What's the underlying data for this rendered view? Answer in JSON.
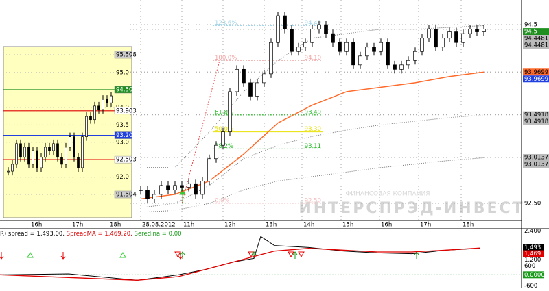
{
  "main": {
    "ylim": [
      92.308,
      94.777
    ],
    "closes": [
      92.65,
      92.55,
      92.6,
      92.7,
      92.65,
      92.7,
      92.68,
      92.72,
      92.6,
      92.75,
      93.0,
      93.15,
      93.3,
      93.75,
      94.0,
      93.85,
      93.7,
      93.85,
      93.95,
      94.3,
      94.6,
      94.45,
      94.2,
      94.25,
      94.3,
      94.45,
      94.5,
      94.4,
      94.3,
      94.2,
      94.3,
      94.05,
      94.15,
      94.25,
      94.2,
      94.3,
      94.05,
      94.0,
      94.05,
      94.1,
      94.2,
      94.35,
      94.45,
      94.25,
      94.35,
      94.42,
      94.3,
      94.4,
      94.45,
      94.42,
      94.45
    ],
    "ma": {
      "color": "#ff6a2a",
      "x": [
        0,
        5,
        10,
        15,
        20,
        25,
        30,
        35,
        40,
        45,
        50
      ],
      "values": [
        92.55,
        92.6,
        92.75,
        93.05,
        93.4,
        93.6,
        93.75,
        93.8,
        93.85,
        93.92,
        93.97
      ]
    },
    "band_upper": {
      "color": "#777",
      "x": [
        0,
        5,
        10,
        15,
        20,
        25,
        30,
        35,
        40,
        45,
        50
      ],
      "values": [
        92.9,
        92.9,
        93.3,
        93.75,
        94.1,
        94.35,
        94.4,
        94.45,
        94.45,
        94.47,
        94.49
      ]
    },
    "band_mid": {
      "color": "#777",
      "x": [
        0,
        5,
        10,
        15,
        20,
        25,
        30,
        35,
        40,
        45,
        50
      ],
      "values": [
        92.45,
        92.5,
        92.7,
        93.0,
        93.15,
        93.25,
        93.32,
        93.38,
        93.42,
        93.46,
        93.49
      ]
    },
    "band_lower": {
      "color": "#777",
      "x": [
        0,
        5,
        10,
        15,
        20,
        25,
        30,
        35,
        40,
        45,
        50
      ],
      "values": [
        92.4,
        92.42,
        92.5,
        92.65,
        92.75,
        92.8,
        92.85,
        92.9,
        92.94,
        92.98,
        93.01
      ]
    },
    "fib": [
      {
        "label": "123.6%",
        "price": "94.49",
        "value": 94.49,
        "color": "#9ad0e8"
      },
      {
        "label": "100.0%",
        "price": "94.10",
        "value": 94.1,
        "color": "#f0a0a0"
      },
      {
        "label": "61.8%",
        "price": "93.49",
        "value": 93.49,
        "color": "#22bb22"
      },
      {
        "label": "50.0%",
        "price": "93.30",
        "value": 93.3,
        "color": "#e8e000"
      },
      {
        "label": "38.2%",
        "price": "93.11",
        "value": 93.11,
        "color": "#22bb22"
      },
      {
        "label": "0.0%",
        "price": "92.50",
        "value": 92.5,
        "color": "#f4c0c0"
      }
    ],
    "tags": [
      {
        "value": 94.5,
        "bg": "#fff",
        "fg": "#000"
      },
      {
        "value": 94.5,
        "bg": "#1f8f1f",
        "fg": "#fff"
      },
      {
        "value": 94.4481,
        "bg": "#bbb",
        "fg": "#000"
      },
      {
        "value": 94.4481,
        "bg": "#bbb",
        "fg": "#000"
      },
      {
        "value": 93.9699,
        "bg": "#ff6a2a",
        "fg": "#000"
      },
      {
        "value": 93.9699,
        "bg": "#2040e0",
        "fg": "#fff"
      },
      {
        "value": 93.4918,
        "bg": "#bbb",
        "fg": "#000"
      },
      {
        "value": 93.4918,
        "bg": "#bbb",
        "fg": "#000"
      },
      {
        "value": 93.0137,
        "bg": "#bbb",
        "fg": "#000"
      },
      {
        "value": 93.0137,
        "bg": "#bbb",
        "fg": "#000"
      },
      {
        "value": 92.5,
        "label": "92.50",
        "bg": "#fff",
        "fg": "#000"
      }
    ],
    "time_labels": [
      "28.08.2012",
      "11h",
      "12h",
      "13h",
      "14h",
      "15h",
      "16h",
      "17h",
      "18h"
    ]
  },
  "inset": {
    "ylim": [
      90.837,
      95.744
    ],
    "closes": [
      92.17,
      92.37,
      92.96,
      92.57,
      92.86,
      92.37,
      92.76,
      92.27,
      92.57,
      92.86,
      92.76,
      92.96,
      92.57,
      92.37,
      92.86,
      93.16,
      92.57,
      92.27,
      93.16,
      93.74,
      93.65,
      94.04,
      93.94,
      94.23,
      94.13,
      94.33
    ],
    "ticks": [
      {
        "value": 95.508,
        "label": "95.508",
        "bg": "#ccc",
        "fg": "#000"
      },
      {
        "value": 95,
        "label": "95.0"
      },
      {
        "value": 94.507,
        "label": "94.507",
        "bg": "#1f8f1f",
        "fg": "#fff",
        "line": "#1f8f1f"
      },
      {
        "value": 94,
        "label": "94.0"
      },
      {
        "value": 93.903,
        "label": "93.903",
        "bg": "#fff",
        "fg": "#000",
        "line": "#e00000"
      },
      {
        "value": 93.5,
        "label": "93.5"
      },
      {
        "value": 93.201,
        "label": "93.201",
        "bg": "#2040e0",
        "fg": "#fff",
        "line": "#2040e0"
      },
      {
        "value": 93,
        "label": "93.0"
      },
      {
        "value": 92.503,
        "label": "92.503",
        "bg": "#fff",
        "fg": "#000",
        "line": "#e00000"
      },
      {
        "value": 92,
        "label": "92.0"
      },
      {
        "value": 91.504,
        "label": "91.504",
        "bg": "#ccc",
        "fg": "#000"
      }
    ],
    "time_labels": [
      "16h",
      "17h",
      "18h"
    ]
  },
  "indicator": {
    "legend": [
      {
        "text": "R) spread = 1,493.00, ",
        "color": "#000"
      },
      {
        "text": "SpreadMA = 1,469.20, ",
        "color": "#e00000"
      },
      {
        "text": "Seredina = 0.00",
        "color": "#1a9a1a"
      }
    ],
    "ylim": [
      -700,
      2450
    ],
    "spread": {
      "color": "#000",
      "x": [
        0,
        100,
        200,
        260,
        300,
        340,
        370,
        380,
        400,
        450,
        500,
        550,
        600,
        650,
        700
      ],
      "values": [
        0,
        50,
        -300,
        0,
        300,
        700,
        900,
        2100,
        1600,
        1500,
        1300,
        1200,
        1150,
        1350,
        1450
      ]
    },
    "spread_ma": {
      "color": "#e00000",
      "x": [
        0,
        200,
        260,
        300,
        350,
        400,
        450,
        500,
        550,
        600,
        650,
        700
      ],
      "values": [
        0,
        -300,
        -100,
        300,
        800,
        1300,
        1450,
        1350,
        1250,
        1250,
        1350,
        1470
      ]
    },
    "ticks": [
      {
        "value": 2400,
        "label": "2,400"
      },
      {
        "value": 1493,
        "label": "1,493",
        "bg": "#000",
        "fg": "#fff"
      },
      {
        "value": 1469,
        "label": "1,469",
        "bg": "#e00000",
        "fg": "#fff"
      },
      {
        "value": 1200,
        "label": "1,200"
      },
      600,
      {
        "value": 0,
        "label": "0.00000",
        "bg": "#1a9a1a",
        "fg": "#fff"
      },
      -600
    ]
  },
  "watermark": {
    "line1": "ФИНАНСОВАЯ КОМПАНИЯ",
    "line2": "ИНТЕРСПРЭД-ИНВЕСТ"
  }
}
